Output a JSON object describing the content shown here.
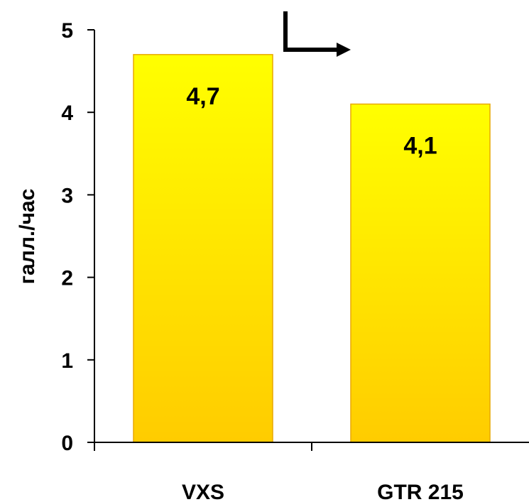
{
  "chart_data": {
    "type": "bar",
    "title": "",
    "xlabel": "",
    "ylabel": "галл./час",
    "categories": [
      "VXS",
      "GTR 215"
    ],
    "values": [
      4.7,
      4.1
    ],
    "data_labels": [
      "4,7",
      "4,1"
    ],
    "ylim": [
      0,
      5
    ],
    "yticks": [
      0,
      1,
      2,
      3,
      4,
      5
    ],
    "ytick_labels": [
      "0",
      "1",
      "2",
      "3",
      "4",
      "5"
    ],
    "grid": false,
    "legend": "none",
    "colors": {
      "bar_top": "#ffff00",
      "bar_bottom": "#ffcc00",
      "bar_border": "#e8a800",
      "axis": "#000000",
      "text": "#000000"
    }
  },
  "annotation": {
    "icon": "step-arrow-icon",
    "color": "#000000"
  }
}
